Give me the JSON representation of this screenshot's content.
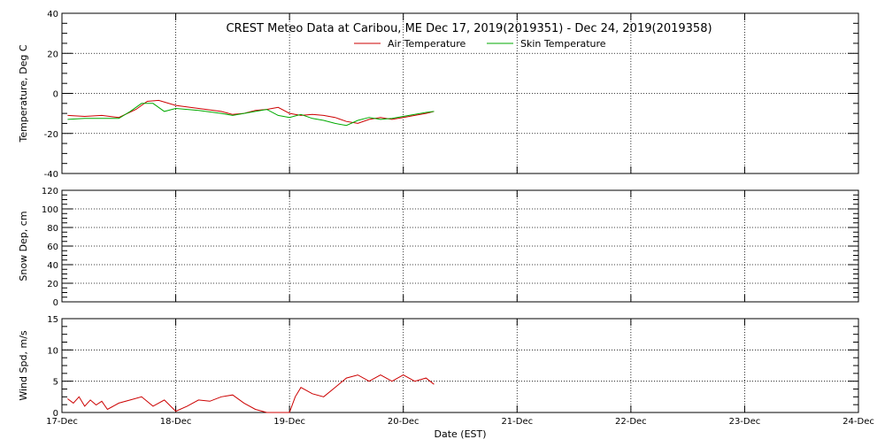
{
  "title": "CREST Meteo Data at Caribou, ME   Dec 17, 2019(2019351) - Dec 24, 2019(2019358)",
  "xlabel": "Date (EST)",
  "x_tick_labels": [
    "17-Dec",
    "18-Dec",
    "19-Dec",
    "20-Dec",
    "21-Dec",
    "22-Dec",
    "23-Dec",
    "24-Dec"
  ],
  "colors": {
    "air": "#cc0000",
    "skin": "#00aa00",
    "wind": "#cc0000",
    "grid": "#000000"
  },
  "chart_data": [
    {
      "type": "line",
      "ylabel": "Temperature, Deg C",
      "ylim": [
        -40,
        40
      ],
      "y_ticks": [
        -40,
        -20,
        0,
        20,
        40
      ],
      "xlim": [
        0,
        7
      ],
      "grid": true,
      "legend": "top-center",
      "series": [
        {
          "name": "Air Temperature",
          "color": "#cc0000",
          "x": [
            0.05,
            0.2,
            0.35,
            0.5,
            0.65,
            0.75,
            0.85,
            1.0,
            1.2,
            1.4,
            1.5,
            1.6,
            1.7,
            1.8,
            1.9,
            2.0,
            2.1,
            2.2,
            2.3,
            2.4,
            2.5,
            2.6,
            2.7,
            2.8,
            2.9,
            3.0,
            3.1,
            3.2,
            3.27
          ],
          "y": [
            -11,
            -11.5,
            -11,
            -12,
            -8,
            -4,
            -3.5,
            -6,
            -7.5,
            -9,
            -10.5,
            -10,
            -8.5,
            -8,
            -7,
            -10,
            -11,
            -10.5,
            -11,
            -12,
            -14,
            -15,
            -13,
            -12,
            -13,
            -12,
            -11,
            -10,
            -9
          ]
        },
        {
          "name": "Skin Temperature",
          "color": "#00aa00",
          "x": [
            0.05,
            0.2,
            0.35,
            0.5,
            0.6,
            0.7,
            0.8,
            0.9,
            1.0,
            1.2,
            1.4,
            1.5,
            1.6,
            1.7,
            1.8,
            1.9,
            2.0,
            2.1,
            2.2,
            2.3,
            2.4,
            2.5,
            2.6,
            2.7,
            2.8,
            2.9,
            3.0,
            3.1,
            3.2,
            3.27
          ],
          "y": [
            -13,
            -12.5,
            -12.5,
            -12.5,
            -9,
            -5,
            -5,
            -9,
            -7.5,
            -8.5,
            -10,
            -11,
            -10,
            -9,
            -8,
            -11,
            -12,
            -10.5,
            -12.5,
            -13.5,
            -15,
            -16,
            -13.5,
            -12,
            -13,
            -12.5,
            -11.5,
            -10.5,
            -9.5,
            -9
          ]
        }
      ]
    },
    {
      "type": "line",
      "ylabel": "Snow Dep, cm",
      "ylim": [
        0,
        120
      ],
      "y_ticks": [
        0,
        20,
        40,
        60,
        80,
        100,
        120
      ],
      "xlim": [
        0,
        7
      ],
      "grid": true,
      "series": []
    },
    {
      "type": "line",
      "ylabel": "Wind Spd, m/s",
      "ylim": [
        0,
        15
      ],
      "y_ticks": [
        0,
        5,
        10,
        15
      ],
      "xlim": [
        0,
        7
      ],
      "grid": true,
      "series": [
        {
          "color": "#cc0000",
          "x": [
            0.05,
            0.1,
            0.15,
            0.2,
            0.25,
            0.3,
            0.35,
            0.4,
            0.5,
            0.6,
            0.7,
            0.8,
            0.9,
            1.0,
            1.1,
            1.2,
            1.3,
            1.4,
            1.5,
            1.6,
            1.7,
            1.8,
            1.9,
            2.0,
            2.05,
            2.1,
            2.2,
            2.3,
            2.4,
            2.5,
            2.6,
            2.7,
            2.8,
            2.9,
            3.0,
            3.1,
            3.2,
            3.27
          ],
          "y": [
            2.2,
            1.5,
            2.5,
            1.0,
            2.0,
            1.2,
            1.8,
            0.5,
            1.5,
            2.0,
            2.5,
            1.0,
            2.0,
            0.2,
            1.0,
            2.0,
            1.8,
            2.5,
            2.8,
            1.5,
            0.5,
            0.0,
            0.0,
            0.0,
            2.5,
            4.0,
            3.0,
            2.5,
            4.0,
            5.5,
            6.0,
            5.0,
            6.0,
            5.0,
            6.0,
            5.0,
            5.5,
            4.5
          ]
        }
      ]
    }
  ]
}
